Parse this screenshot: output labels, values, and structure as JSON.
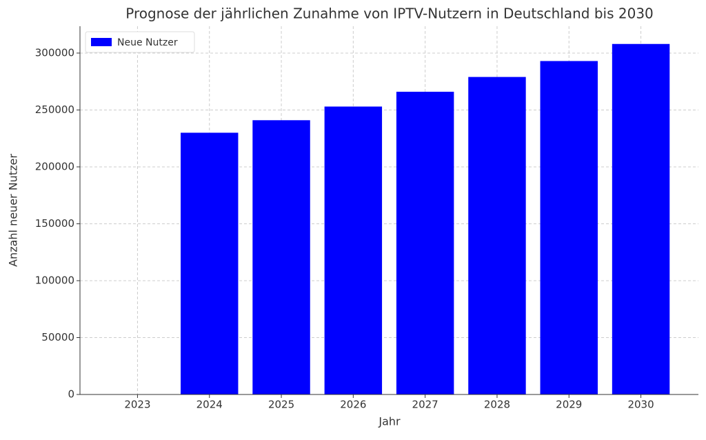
{
  "chart_data": {
    "type": "bar",
    "title": "Prognose der jährlichen Zunahme von IPTV-Nutzern in Deutschland bis 2030",
    "x_label": "Jahr",
    "y_label": "Anzahl neuer Nutzer",
    "categories": [
      "2023",
      "2024",
      "2025",
      "2026",
      "2027",
      "2028",
      "2029",
      "2030"
    ],
    "series": [
      {
        "name": "Neue Nutzer",
        "color": "#0000ff",
        "values": [
          0,
          230000,
          241000,
          253000,
          266000,
          279000,
          293000,
          308000
        ]
      }
    ],
    "ylim": [
      0,
      323600
    ],
    "yticks": [
      0,
      50000,
      100000,
      150000,
      200000,
      250000,
      300000
    ],
    "grid": true,
    "legend": "upper left"
  }
}
